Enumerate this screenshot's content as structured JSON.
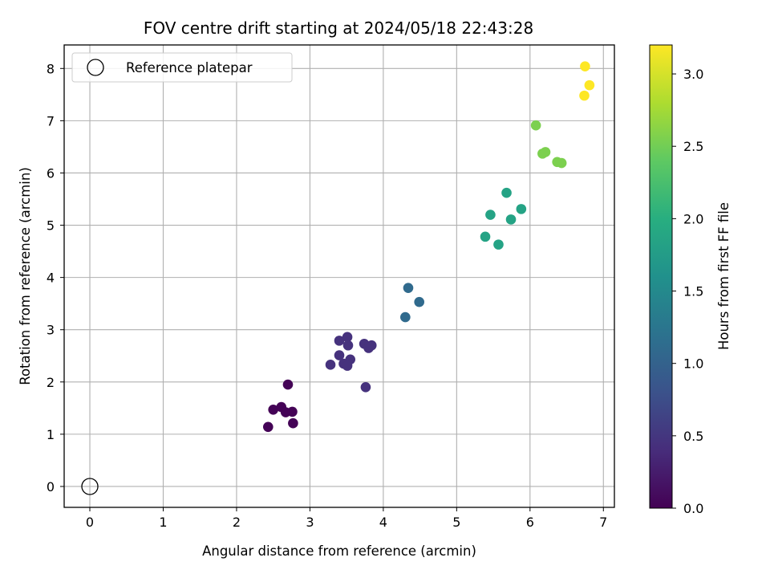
{
  "chart_data": {
    "type": "scatter",
    "title": "FOV centre drift starting at 2024/05/18 22:43:28",
    "xlabel": "Angular distance from reference (arcmin)",
    "ylabel": "Rotation from reference (arcmin)",
    "xlim": [
      -0.35,
      7.15
    ],
    "ylim": [
      -0.4,
      8.45
    ],
    "xticks": [
      "0",
      "1",
      "2",
      "3",
      "4",
      "5",
      "6",
      "7"
    ],
    "yticks": [
      "0",
      "1",
      "2",
      "3",
      "4",
      "5",
      "6",
      "7",
      "8"
    ],
    "grid": true,
    "legend": {
      "placement": "top-left",
      "entries": [
        "Reference platepar"
      ]
    },
    "reference": {
      "name": "Reference platepar",
      "x": 0,
      "y": 0
    },
    "colorbar": {
      "label": "Hours from first FF file",
      "colormap": "viridis",
      "range": [
        0,
        3.2
      ],
      "ticks": [
        "0.0",
        "0.5",
        "1.0",
        "1.5",
        "2.0",
        "2.5",
        "3.0"
      ]
    },
    "points": [
      {
        "x": 2.7,
        "y": 1.95,
        "c": 0.02
      },
      {
        "x": 2.5,
        "y": 1.47,
        "c": 0.02
      },
      {
        "x": 2.61,
        "y": 1.52,
        "c": 0.02
      },
      {
        "x": 2.67,
        "y": 1.42,
        "c": 0.02
      },
      {
        "x": 2.76,
        "y": 1.43,
        "c": 0.02
      },
      {
        "x": 2.77,
        "y": 1.21,
        "c": 0.02
      },
      {
        "x": 2.43,
        "y": 1.14,
        "c": 0.02
      },
      {
        "x": 3.28,
        "y": 2.33,
        "c": 0.45
      },
      {
        "x": 3.4,
        "y": 2.79,
        "c": 0.45
      },
      {
        "x": 3.4,
        "y": 2.51,
        "c": 0.45
      },
      {
        "x": 3.46,
        "y": 2.35,
        "c": 0.45
      },
      {
        "x": 3.51,
        "y": 2.86,
        "c": 0.45
      },
      {
        "x": 3.52,
        "y": 2.7,
        "c": 0.45
      },
      {
        "x": 3.55,
        "y": 2.43,
        "c": 0.45
      },
      {
        "x": 3.51,
        "y": 2.31,
        "c": 0.45
      },
      {
        "x": 3.74,
        "y": 2.73,
        "c": 0.45
      },
      {
        "x": 3.8,
        "y": 2.65,
        "c": 0.45
      },
      {
        "x": 3.84,
        "y": 2.7,
        "c": 0.45
      },
      {
        "x": 3.76,
        "y": 1.9,
        "c": 0.45
      },
      {
        "x": 4.34,
        "y": 3.8,
        "c": 1.1
      },
      {
        "x": 4.49,
        "y": 3.53,
        "c": 1.1
      },
      {
        "x": 4.3,
        "y": 3.24,
        "c": 1.1
      },
      {
        "x": 5.68,
        "y": 5.62,
        "c": 1.85
      },
      {
        "x": 5.46,
        "y": 5.2,
        "c": 1.85
      },
      {
        "x": 5.88,
        "y": 5.31,
        "c": 1.85
      },
      {
        "x": 5.74,
        "y": 5.11,
        "c": 1.85
      },
      {
        "x": 5.39,
        "y": 4.78,
        "c": 1.85
      },
      {
        "x": 5.57,
        "y": 4.63,
        "c": 1.85
      },
      {
        "x": 6.08,
        "y": 6.91,
        "c": 2.55
      },
      {
        "x": 6.17,
        "y": 6.37,
        "c": 2.55
      },
      {
        "x": 6.21,
        "y": 6.4,
        "c": 2.55
      },
      {
        "x": 6.37,
        "y": 6.21,
        "c": 2.55
      },
      {
        "x": 6.43,
        "y": 6.19,
        "c": 2.55
      },
      {
        "x": 6.75,
        "y": 8.04,
        "c": 3.2
      },
      {
        "x": 6.81,
        "y": 7.68,
        "c": 3.2
      },
      {
        "x": 6.74,
        "y": 7.48,
        "c": 3.2
      }
    ]
  }
}
